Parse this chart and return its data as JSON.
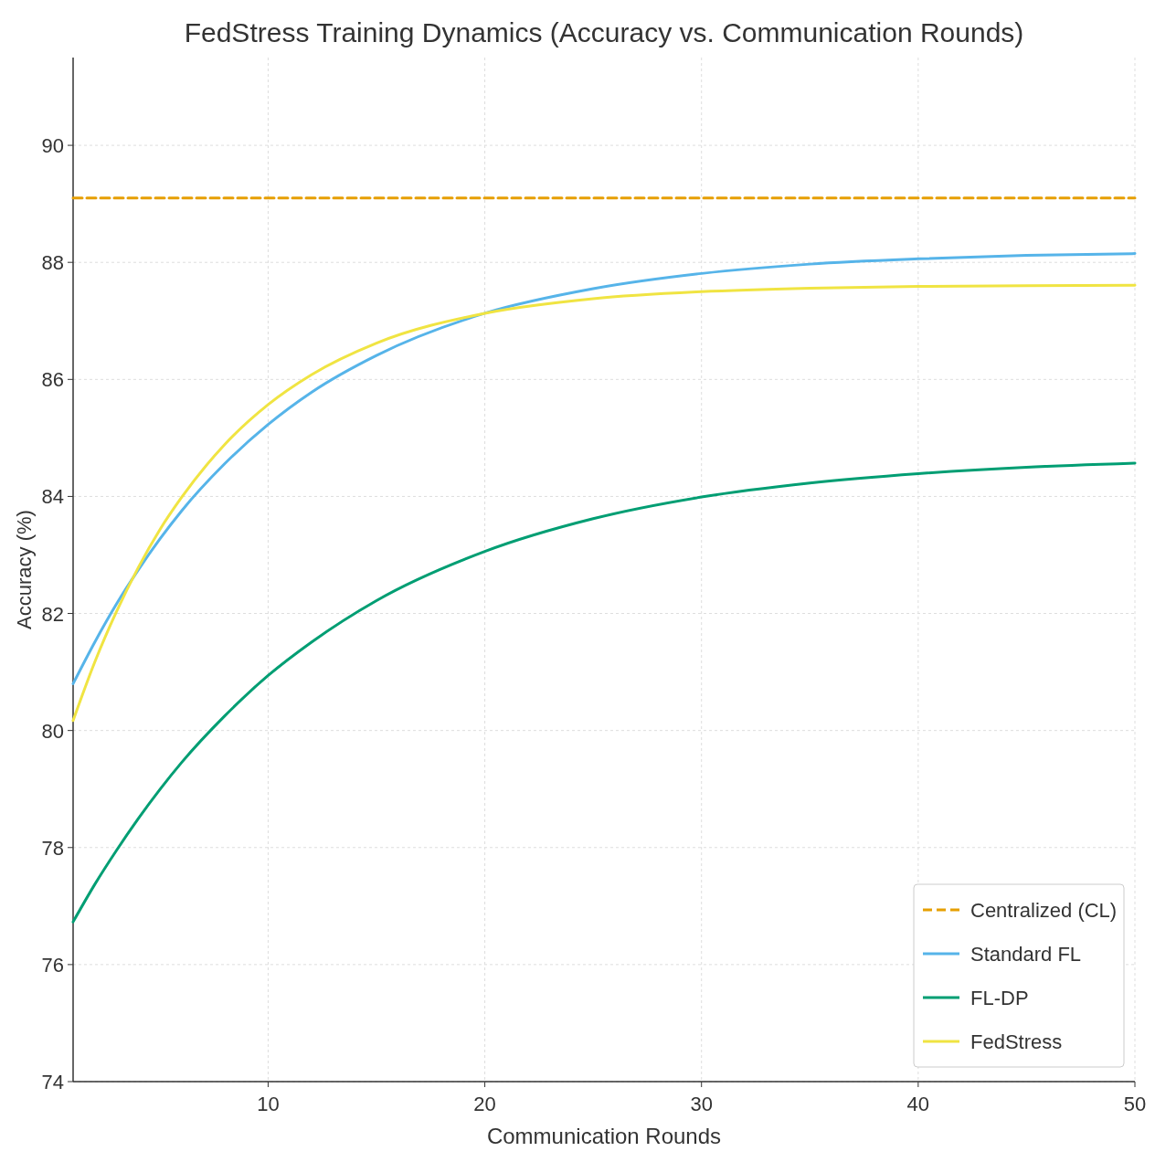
{
  "chart_data": {
    "type": "line",
    "title": "FedStress Training Dynamics (Accuracy vs. Communication Rounds)",
    "xlabel": "Communication Rounds",
    "ylabel": "Accuracy (%)",
    "x": [
      1,
      2,
      3,
      4,
      5,
      6,
      8,
      10,
      12,
      15,
      20,
      25,
      30,
      35,
      40,
      45,
      50
    ],
    "series": [
      {
        "name": "Centralized (CL)",
        "color": "#e69f00",
        "line_style": "dashed",
        "x": [
          1,
          50
        ],
        "values": [
          89.1,
          89.1
        ]
      },
      {
        "name": "Standard FL",
        "color": "#56b4e9",
        "values": [
          80.8,
          81.51,
          82.16,
          82.74,
          83.27,
          83.75,
          84.56,
          85.23,
          85.78,
          86.41,
          87.13,
          87.55,
          87.81,
          87.97,
          88.06,
          88.12,
          88.15
        ]
      },
      {
        "name": "FL-DP",
        "color": "#009e73",
        "values": [
          76.73,
          77.37,
          77.95,
          78.49,
          78.99,
          79.45,
          80.25,
          80.94,
          81.51,
          82.22,
          83.06,
          83.62,
          83.99,
          84.23,
          84.39,
          84.5,
          84.57
        ]
      },
      {
        "name": "FedStress",
        "color": "#f0e442",
        "values": [
          80.17,
          81.17,
          82.03,
          82.78,
          83.43,
          83.98,
          84.89,
          85.57,
          86.08,
          86.62,
          87.13,
          87.38,
          87.5,
          87.56,
          87.59,
          87.6,
          87.61
        ]
      }
    ],
    "xlim": [
      1,
      50
    ],
    "xticks": [
      10,
      20,
      30,
      40,
      50
    ],
    "ylim": [
      74,
      91.5
    ],
    "yticks": [
      74,
      76,
      78,
      80,
      82,
      84,
      86,
      88,
      90
    ],
    "grid": true,
    "legend": "bottom right",
    "line_style": "solid",
    "marker": "none"
  }
}
